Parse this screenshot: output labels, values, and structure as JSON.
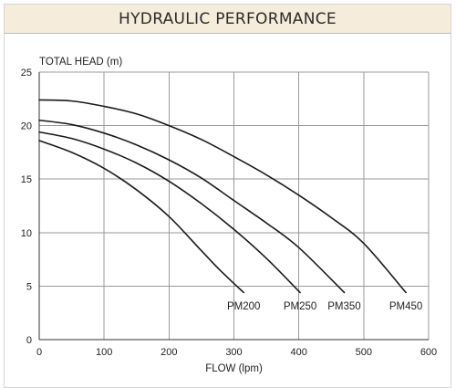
{
  "title": "HYDRAULIC PERFORMANCE",
  "chart_data": {
    "type": "line",
    "title": "HYDRAULIC PERFORMANCE",
    "xlabel": "FLOW (lpm)",
    "ylabel": "TOTAL HEAD (m)",
    "xlim": [
      0,
      600
    ],
    "ylim": [
      0,
      25
    ],
    "xticks": [
      0,
      100,
      200,
      300,
      400,
      500,
      600
    ],
    "yticks": [
      0,
      5,
      10,
      15,
      20,
      25
    ],
    "grid": true,
    "legend": "none",
    "series": [
      {
        "name": "PM200",
        "x": [
          0,
          50,
          100,
          150,
          200,
          250,
          280,
          315
        ],
        "y": [
          18.6,
          17.5,
          16.0,
          14.0,
          11.5,
          8.3,
          6.4,
          4.4
        ]
      },
      {
        "name": "PM250",
        "x": [
          0,
          50,
          100,
          150,
          200,
          250,
          300,
          350,
          402
        ],
        "y": [
          19.4,
          18.8,
          17.8,
          16.5,
          14.8,
          12.7,
          10.3,
          7.6,
          4.4
        ]
      },
      {
        "name": "PM350",
        "x": [
          0,
          50,
          100,
          150,
          200,
          250,
          300,
          350,
          400,
          470
        ],
        "y": [
          20.5,
          20.1,
          19.3,
          18.2,
          16.8,
          15.1,
          13.0,
          10.9,
          8.6,
          4.4
        ]
      },
      {
        "name": "PM450",
        "x": [
          0,
          50,
          100,
          150,
          200,
          250,
          300,
          350,
          400,
          450,
          500,
          565
        ],
        "y": [
          22.4,
          22.3,
          21.8,
          21.1,
          20.0,
          18.7,
          17.1,
          15.4,
          13.5,
          11.4,
          9.0,
          4.4
        ]
      }
    ]
  },
  "colors": {
    "title_background": "#f6ecdb",
    "line": "#1a1a1a",
    "grid": "#9a9a9a"
  }
}
